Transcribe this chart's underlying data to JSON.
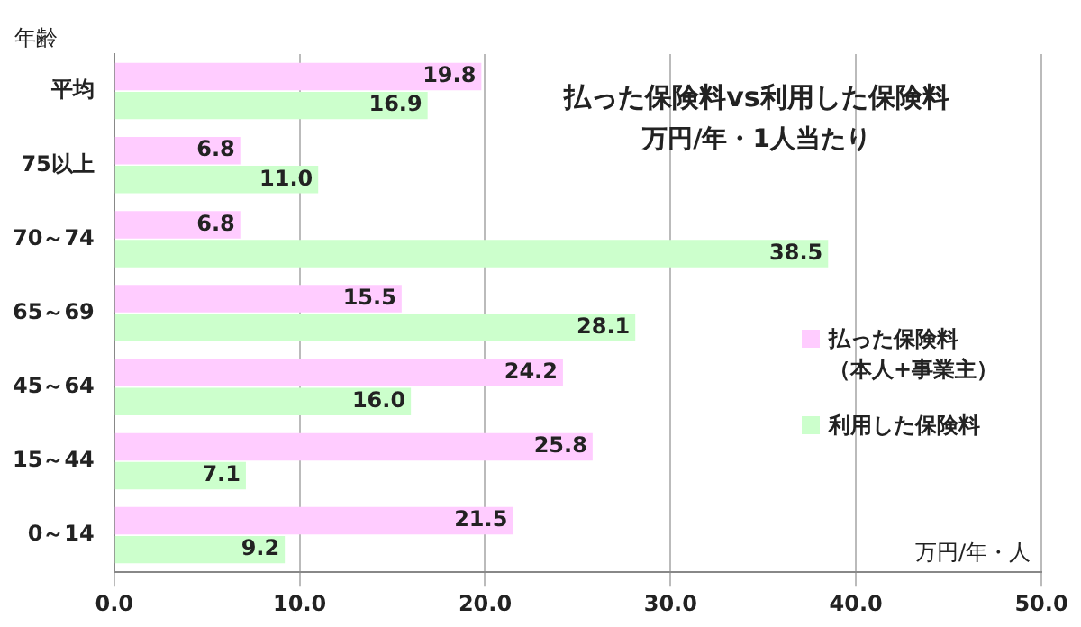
{
  "chart_data": {
    "type": "bar",
    "orientation": "horizontal",
    "title": "払った保険料vs利用した保険料",
    "subtitle": "万円/年・1人当たり",
    "xlabel": "万円/年・人",
    "ylabel": "年齢",
    "categories": [
      "平均",
      "75以上",
      "70～74",
      "65～69",
      "45～64",
      "15～44",
      "0～14"
    ],
    "series": [
      {
        "name": "払った保険料（本人+事業主）",
        "color": "#ffccff",
        "values": [
          19.8,
          6.8,
          6.8,
          15.5,
          24.2,
          25.8,
          21.5
        ],
        "value_labels": [
          "19.8",
          "6.8",
          "6.8",
          "15.5",
          "24.2",
          "25.8",
          "21.5"
        ]
      },
      {
        "name": "利用した保険料",
        "color": "#ccffcc",
        "values": [
          16.9,
          11.0,
          38.5,
          28.1,
          16.0,
          7.1,
          9.2
        ],
        "value_labels": [
          "16.9",
          "11.0",
          "38.5",
          "28.1",
          "16.0",
          "7.1",
          "9.2"
        ]
      }
    ],
    "xlim": [
      0,
      50
    ],
    "xticks": [
      {
        "value": 0,
        "label": "0.0"
      },
      {
        "value": 10,
        "label": "10.0"
      },
      {
        "value": 20,
        "label": "20.0"
      },
      {
        "value": 30,
        "label": "30.0"
      },
      {
        "value": 40,
        "label": "40.0"
      },
      {
        "value": 50,
        "label": "50.0"
      }
    ],
    "grid": "x",
    "legend": "right"
  }
}
